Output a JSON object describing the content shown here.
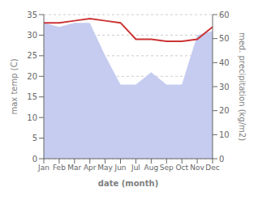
{
  "chart_data": {
    "type": "line",
    "xlabel": "date (month)",
    "ylabel": "max temp (C)",
    "y2label": "med. precipitation (kg/m2)",
    "categories": [
      "Jan",
      "Feb",
      "Mar",
      "Apr",
      "May",
      "Jun",
      "Jul",
      "Aug",
      "Sep",
      "Oct",
      "Nov",
      "Dec"
    ],
    "series": [
      {
        "type": "area",
        "color": "#c5ccf0",
        "values": [
          33,
          32,
          33,
          33,
          25,
          18,
          18,
          21,
          18,
          18,
          30,
          31
        ]
      },
      {
        "type": "line",
        "color": "#cc3333",
        "values": [
          33,
          33,
          33.5,
          34,
          33.5,
          33,
          29,
          29,
          28.5,
          28.5,
          29,
          32
        ]
      }
    ],
    "ylim": [
      0,
      35
    ],
    "yticks": [
      0,
      5,
      10,
      15,
      20,
      25,
      30,
      35
    ],
    "y2lim": [
      0,
      60
    ],
    "y2ticks": [
      0,
      10,
      20,
      30,
      40,
      50,
      60
    ],
    "grid": true
  }
}
